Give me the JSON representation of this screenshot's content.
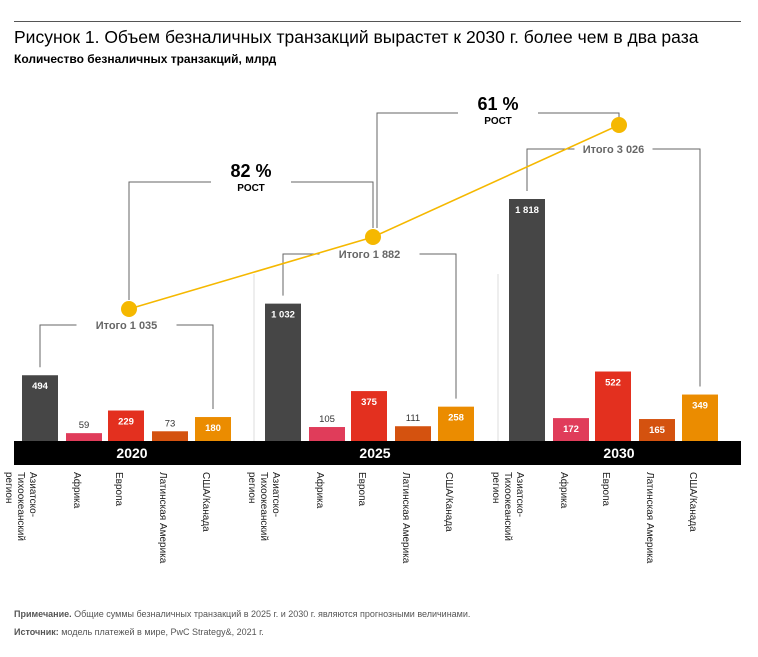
{
  "header": {
    "title": "Рисунок 1. Объем безналичных транзакций вырастет к 2030 г. более чем в два раза",
    "subtitle": "Количество безналичных транзакций, млрд"
  },
  "footer": {
    "note_label": "Примечание.",
    "note_text": " Общие суммы безналичных транзакций в 2025 г. и 2030 г. являются прогнозными величинами.",
    "source_label": "Источник:",
    "source_text": " модель платежей в мире, PwC Strategy&, 2021 г."
  },
  "colors": {
    "asia": "#464646",
    "africa": "#e03c5a",
    "europe": "#e3301f",
    "latam": "#d4520f",
    "usa": "#eb8c00",
    "line": "#f5b800",
    "axis_band": "#000000"
  },
  "chart_data": {
    "type": "bar",
    "categories": [
      "Азиатско-Тихоокеанский регион",
      "Африка",
      "Европа",
      "Латинская Америка",
      "США/Канада"
    ],
    "category_labels": [
      [
        "Азиатско-",
        "Тихоокеанский",
        "регион"
      ],
      [
        "Африка"
      ],
      [
        "Европа"
      ],
      [
        "Латинская Америка"
      ],
      [
        "США/Канада"
      ]
    ],
    "years": [
      "2020",
      "2025",
      "2030"
    ],
    "series": [
      {
        "year": "2020",
        "values": [
          494,
          59,
          229,
          73,
          180
        ],
        "total_label": "Итого 1 035",
        "total": 1035
      },
      {
        "year": "2025",
        "values": [
          1032,
          105,
          375,
          111,
          258
        ],
        "total_label": "Итого 1 882",
        "total": 1882
      },
      {
        "year": "2030",
        "values": [
          1818,
          172,
          522,
          165,
          349
        ],
        "total_label": "Итого 3 026",
        "total": 3026
      }
    ],
    "value_labels": [
      [
        "494",
        "59",
        "229",
        "73",
        "180"
      ],
      [
        "1 032",
        "105",
        "375",
        "111",
        "258"
      ],
      [
        "1 818",
        "172",
        "522",
        "165",
        "349"
      ]
    ],
    "growth": [
      {
        "pct": "82 %",
        "label": "РОСТ"
      },
      {
        "pct": "61 %",
        "label": "РОСТ"
      }
    ],
    "ylim": [
      0,
      1818
    ]
  }
}
